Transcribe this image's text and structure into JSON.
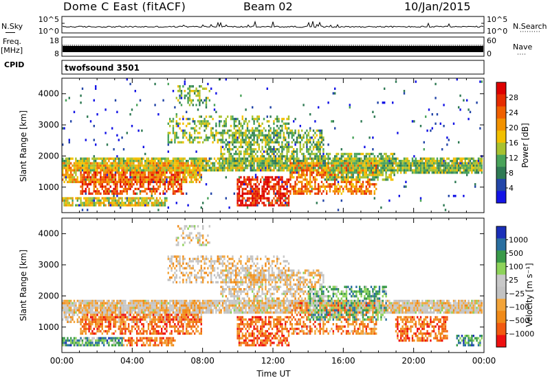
{
  "header": {
    "station": "Dome C East (fitACF)",
    "beam": "Beam 02",
    "date": "10/Jan/2015"
  },
  "summary_panels": {
    "nsky_label": "N.Sky",
    "nsearch_label": "N.Search",
    "nsky_ticks": [
      "10^5",
      "10^0"
    ],
    "nsearch_ticks": [
      "10^5",
      "10^0"
    ],
    "freq_label": "Freq.",
    "freq_unit": "[MHz]",
    "freq_ticks": [
      "18",
      "8"
    ],
    "nave_label": "Nave",
    "nave_ticks": [
      "60",
      "0"
    ],
    "cpid_label": "CPID",
    "cpid_value": "twofsound 3501"
  },
  "colors": {
    "power_scale": [
      "#1414e6",
      "#2346a8",
      "#2f7a54",
      "#49a35a",
      "#a8c230",
      "#f2c000",
      "#f29200",
      "#f06000",
      "#e62c00",
      "#dd0000"
    ],
    "velocity_scale": [
      "#ee1010",
      "#f25a10",
      "#f08a18",
      "#f2a43a",
      "#c2c2c2",
      "#c8c8c8",
      "#8ed35a",
      "#3a9a4a",
      "#2a6fa0",
      "#1a2fb8"
    ]
  },
  "chart_data": [
    {
      "type": "heatmap",
      "name": "power-panel",
      "ylabel": "Slant Range [km]",
      "xlim": [
        0,
        24
      ],
      "ylim": [
        180,
        4500
      ],
      "y_ticks": [
        1000,
        2000,
        3000,
        4000
      ],
      "x_ticks": [
        "00:00",
        "04:00",
        "08:00",
        "12:00",
        "16:00",
        "20:00",
        "00:00"
      ],
      "colorbar": {
        "label": "Power [dB]",
        "range": [
          0,
          32
        ],
        "ticks": [
          "4",
          "8",
          "12",
          "16",
          "20",
          "24",
          "28"
        ]
      },
      "regions": [
        {
          "t0": 0.0,
          "t1": 24.0,
          "r0": 1450,
          "r1": 1900,
          "level": 0.45,
          "density": 0.85
        },
        {
          "t0": 0.0,
          "t1": 8.0,
          "r0": 1100,
          "r1": 1800,
          "level": 0.6,
          "density": 0.7
        },
        {
          "t0": 1.0,
          "t1": 7.0,
          "r0": 700,
          "r1": 1500,
          "level": 0.8,
          "density": 0.6
        },
        {
          "t0": 0.0,
          "t1": 6.0,
          "r0": 350,
          "r1": 650,
          "level": 0.5,
          "density": 0.8
        },
        {
          "t0": 6.0,
          "t1": 13.0,
          "r0": 2400,
          "r1": 3300,
          "level": 0.42,
          "density": 0.35
        },
        {
          "t0": 9.0,
          "t1": 15.0,
          "r0": 1600,
          "r1": 2800,
          "level": 0.4,
          "density": 0.55
        },
        {
          "t0": 10.0,
          "t1": 13.0,
          "r0": 300,
          "r1": 1300,
          "level": 0.88,
          "density": 0.7
        },
        {
          "t0": 13.0,
          "t1": 18.0,
          "r0": 700,
          "r1": 1800,
          "level": 0.72,
          "density": 0.6
        },
        {
          "t0": 15.0,
          "t1": 19.0,
          "r0": 1200,
          "r1": 2100,
          "level": 0.42,
          "density": 0.6
        },
        {
          "t0": 19.0,
          "t1": 24.0,
          "r0": 1400,
          "r1": 1750,
          "level": 0.38,
          "density": 0.7
        },
        {
          "t0": 6.5,
          "t1": 8.5,
          "r0": 3600,
          "r1": 4300,
          "level": 0.4,
          "density": 0.3
        },
        {
          "t0": 0.0,
          "t1": 24.0,
          "r0": 200,
          "r1": 4500,
          "level": 0.15,
          "density": 0.02
        }
      ]
    },
    {
      "type": "heatmap",
      "name": "velocity-panel",
      "xlabel": "Time UT",
      "ylabel": "Slant Range [km]",
      "xlim": [
        0,
        24
      ],
      "ylim": [
        180,
        4500
      ],
      "y_ticks": [
        1000,
        2000,
        3000,
        4000
      ],
      "x_ticks": [
        "00:00",
        "04:00",
        "08:00",
        "12:00",
        "16:00",
        "20:00",
        "00:00"
      ],
      "colorbar": {
        "label": "Velocity [m s⁻¹]",
        "ticks": [
          "1000",
          "500",
          "100",
          "25",
          "−25",
          "−100",
          "−500",
          "−1000"
        ]
      },
      "regions": [
        {
          "t0": 0.0,
          "t1": 24.0,
          "r0": 1400,
          "r1": 1850,
          "level": 0.45,
          "density": 0.85
        },
        {
          "t0": 0.0,
          "t1": 8.0,
          "r0": 1100,
          "r1": 1800,
          "level": 0.4,
          "density": 0.65
        },
        {
          "t0": 1.0,
          "t1": 8.0,
          "r0": 700,
          "r1": 1400,
          "level": 0.2,
          "density": 0.6
        },
        {
          "t0": 0.0,
          "t1": 3.5,
          "r0": 350,
          "r1": 650,
          "level": 0.75,
          "density": 0.8
        },
        {
          "t0": 3.5,
          "t1": 6.5,
          "r0": 350,
          "r1": 650,
          "level": 0.22,
          "density": 0.7
        },
        {
          "t0": 6.0,
          "t1": 13.0,
          "r0": 2400,
          "r1": 3300,
          "level": 0.42,
          "density": 0.4
        },
        {
          "t0": 9.0,
          "t1": 15.0,
          "r0": 1600,
          "r1": 2800,
          "level": 0.45,
          "density": 0.55
        },
        {
          "t0": 10.0,
          "t1": 13.0,
          "r0": 300,
          "r1": 1300,
          "level": 0.18,
          "density": 0.65
        },
        {
          "t0": 13.0,
          "t1": 18.0,
          "r0": 700,
          "r1": 1800,
          "level": 0.25,
          "density": 0.55
        },
        {
          "t0": 14.0,
          "t1": 18.5,
          "r0": 1200,
          "r1": 2300,
          "level": 0.72,
          "density": 0.5
        },
        {
          "t0": 19.0,
          "t1": 22.0,
          "r0": 500,
          "r1": 1300,
          "level": 0.2,
          "density": 0.6
        },
        {
          "t0": 19.0,
          "t1": 24.0,
          "r0": 1400,
          "r1": 1750,
          "level": 0.45,
          "density": 0.7
        },
        {
          "t0": 22.5,
          "t1": 24.0,
          "r0": 300,
          "r1": 700,
          "level": 0.78,
          "density": 0.6
        },
        {
          "t0": 6.5,
          "t1": 8.5,
          "r0": 3600,
          "r1": 4300,
          "level": 0.45,
          "density": 0.3
        }
      ]
    }
  ]
}
